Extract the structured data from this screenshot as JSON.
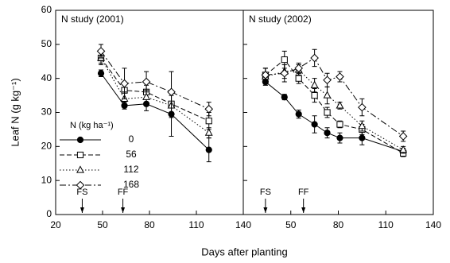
{
  "chart_data": [
    {
      "type": "line",
      "title": "N study (2001)",
      "ylabel": "Leaf N (g kg⁻¹)",
      "xlabel": "Days after planting",
      "legend_title": "N (kg ha⁻¹)",
      "legend": "lower left",
      "x": [
        49,
        64,
        78,
        94,
        118
      ],
      "xlim": [
        20,
        140
      ],
      "xticks": [
        20,
        50,
        80,
        110,
        140
      ],
      "ylim": [
        0,
        60
      ],
      "yticks": [
        0,
        10,
        20,
        30,
        40,
        50,
        60
      ],
      "series": [
        {
          "name": "0",
          "color": "#000000",
          "marker": "circle",
          "filled": true,
          "dash": "solid",
          "values": [
            41.5,
            32,
            32.5,
            29.5,
            19
          ],
          "errors": [
            1,
            1,
            2,
            6.5,
            3.5
          ]
        },
        {
          "name": "56",
          "color": "#000000",
          "marker": "square",
          "filled": false,
          "dash": "dashed",
          "values": [
            46,
            36.5,
            36,
            32.5,
            27.5
          ],
          "errors": [
            1.5,
            2.5,
            2,
            4,
            2.5
          ]
        },
        {
          "name": "112",
          "color": "#000000",
          "marker": "triangle",
          "filled": false,
          "dash": "dotted",
          "values": [
            46,
            34,
            34.5,
            32,
            24
          ],
          "errors": [
            2,
            2,
            2,
            3,
            1.5
          ]
        },
        {
          "name": "168",
          "color": "#000000",
          "marker": "diamond",
          "filled": false,
          "dash": "dashdot",
          "values": [
            48,
            38.5,
            39,
            36,
            31
          ],
          "errors": [
            2,
            4.5,
            3,
            6,
            2
          ]
        }
      ],
      "annotations": [
        {
          "text": "FS",
          "x": 37
        },
        {
          "text": "FF",
          "x": 63
        }
      ]
    },
    {
      "type": "line",
      "title": "N study (2002)",
      "x": [
        34,
        46,
        55,
        65,
        73,
        81,
        95,
        121
      ],
      "xlim": [
        20,
        140
      ],
      "xticks": [
        50,
        80,
        110,
        140
      ],
      "ylim": [
        0,
        60
      ],
      "yticks": [
        0,
        10,
        20,
        30,
        40,
        50,
        60
      ],
      "series": [
        {
          "color": "#000000",
          "marker": "circle",
          "filled": true,
          "dash": "solid",
          "values": [
            39,
            34.5,
            29.5,
            26.5,
            24,
            22.5,
            22.5,
            18.5
          ],
          "errors": [
            1,
            0.8,
            1.2,
            2.5,
            1.5,
            1.5,
            2,
            1
          ]
        },
        {
          "color": "#000000",
          "marker": "square",
          "filled": false,
          "dash": "dashed",
          "values": [
            41,
            45.5,
            40,
            35,
            30,
            26.5,
            25,
            18
          ],
          "errors": [
            2,
            2.5,
            1.5,
            2,
            1.5,
            1,
            1.5,
            1
          ]
        },
        {
          "color": "#000000",
          "marker": "triangle",
          "filled": false,
          "dash": "dotted",
          "values": [
            40.5,
            42,
            42.5,
            38,
            35,
            32,
            26,
            19
          ],
          "errors": [
            2.5,
            2,
            1.5,
            2,
            2.5,
            1,
            1.5,
            1
          ]
        },
        {
          "color": "#000000",
          "marker": "diamond",
          "filled": false,
          "dash": "dashdot",
          "values": [
            41,
            41.5,
            43,
            46,
            39.5,
            40.5,
            31.5,
            23
          ],
          "errors": [
            2,
            2.5,
            1.5,
            2.5,
            2,
            1.5,
            2.5,
            1.5
          ]
        }
      ],
      "annotations": [
        {
          "text": "FS",
          "x": 34
        },
        {
          "text": "FF",
          "x": 58
        }
      ]
    }
  ]
}
